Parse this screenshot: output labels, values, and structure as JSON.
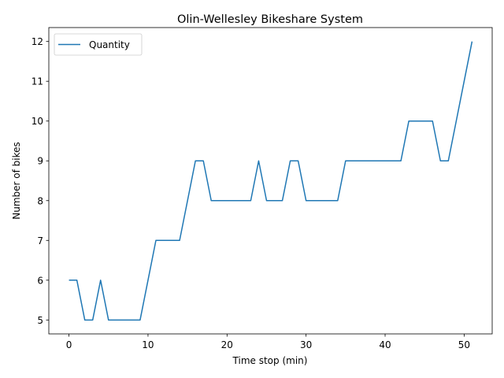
{
  "chart_data": {
    "type": "line",
    "title": "Olin-Wellesley Bikeshare System",
    "xlabel": "Time stop (min)",
    "ylabel": "Number of bikes",
    "xlim": [
      -2.55,
      53.55
    ],
    "ylim": [
      4.65,
      12.35
    ],
    "xticks": [
      0,
      10,
      20,
      30,
      40,
      50
    ],
    "yticks": [
      5,
      6,
      7,
      8,
      9,
      10,
      11,
      12
    ],
    "grid": false,
    "legend_position": "upper-left",
    "series": [
      {
        "name": "Quantity",
        "color": "#1f77b4",
        "x": [
          0,
          1,
          2,
          3,
          4,
          5,
          6,
          7,
          8,
          9,
          10,
          11,
          12,
          13,
          14,
          15,
          16,
          17,
          18,
          19,
          20,
          21,
          22,
          23,
          24,
          25,
          26,
          27,
          28,
          29,
          30,
          31,
          32,
          33,
          34,
          35,
          36,
          37,
          38,
          39,
          40,
          41,
          42,
          43,
          44,
          45,
          46,
          47,
          48,
          49,
          50,
          51
        ],
        "y": [
          6,
          6,
          5,
          5,
          6,
          5,
          5,
          5,
          5,
          5,
          6,
          7,
          7,
          7,
          7,
          8,
          9,
          9,
          8,
          8,
          8,
          8,
          8,
          8,
          9,
          8,
          8,
          8,
          9,
          9,
          8,
          8,
          8,
          8,
          8,
          9,
          9,
          9,
          9,
          9,
          9,
          9,
          9,
          10,
          10,
          10,
          10,
          9,
          9,
          10,
          11,
          12
        ]
      }
    ]
  }
}
